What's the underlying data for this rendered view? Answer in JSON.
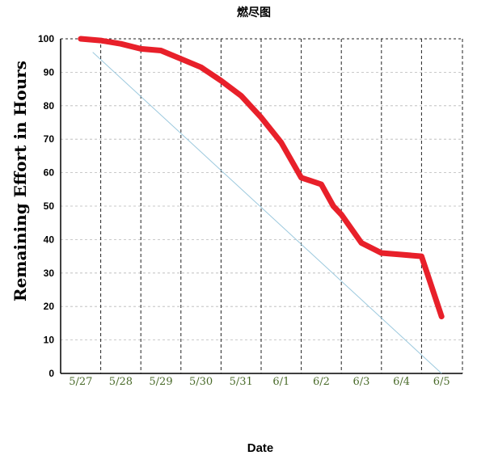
{
  "chart_data": {
    "type": "line",
    "title": "燃尽图",
    "xlabel": "Date",
    "ylabel": "Remaining Effort in Hours",
    "x_ticks": [
      "5/27",
      "5/28",
      "5/29",
      "5/30",
      "5/31",
      "6/1",
      "6/2",
      "6/3",
      "6/4",
      "6/5"
    ],
    "y_ticks": [
      0,
      10,
      20,
      30,
      40,
      50,
      60,
      70,
      80,
      90,
      100
    ],
    "ylim": [
      0,
      100
    ],
    "grid": true,
    "colors": {
      "actual": "#e8202a",
      "ideal": "#9cc9de",
      "grid_major": "#222222",
      "grid_minor": "#b8b8b8"
    },
    "series": [
      {
        "key": "actual",
        "x": [
          0,
          0.5,
          1,
          1.5,
          2,
          2.5,
          3,
          3.5,
          4,
          4.5,
          5,
          5.5,
          6,
          6.3,
          6.5,
          7,
          7.5,
          8,
          8.5,
          9
        ],
        "values": [
          100,
          99.5,
          98.5,
          97,
          96.5,
          94,
          91.5,
          87.5,
          83,
          76.5,
          69,
          58.5,
          56.5,
          50,
          47.5,
          39,
          36,
          35.5,
          35,
          17
        ]
      },
      {
        "key": "ideal",
        "x": [
          0.3,
          9
        ],
        "values": [
          96,
          0
        ]
      }
    ]
  }
}
